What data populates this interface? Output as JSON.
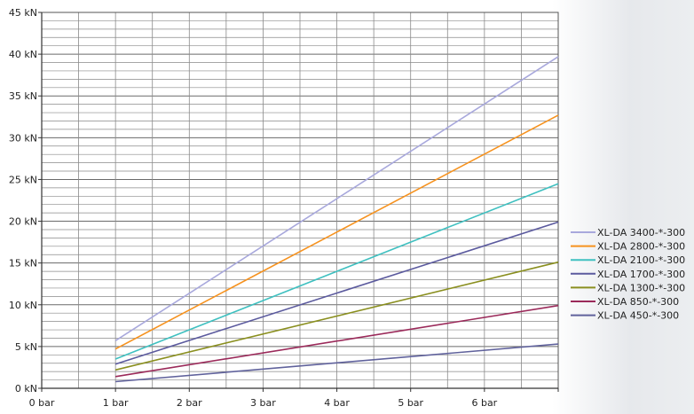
{
  "chart_data": {
    "type": "line",
    "title": "",
    "xlabel": "",
    "ylabel": "",
    "x_ticks": [
      "0 bar",
      "1 bar",
      "2 bar",
      "3 bar",
      "4 bar",
      "5 bar",
      "6 bar"
    ],
    "y_ticks": [
      "0 kN",
      "5 kN",
      "10 kN",
      "15 kN",
      "20 kN",
      "25 kN",
      "30 kN",
      "35 kN",
      "40 kN",
      "45 kN"
    ],
    "xlim": [
      0,
      7
    ],
    "ylim": [
      0,
      45
    ],
    "grid": true,
    "grid_minor_y": 1,
    "legend_position": "right",
    "series": [
      {
        "name": "XL-DA 3400-*-300",
        "color": "#a8a8dc",
        "x": [
          1,
          7
        ],
        "y": [
          5.7,
          39.7
        ]
      },
      {
        "name": "XL-DA 2800-*-300",
        "color": "#f6921e",
        "x": [
          1,
          7
        ],
        "y": [
          4.7,
          32.7
        ]
      },
      {
        "name": "XL-DA 2100-*-300",
        "color": "#3fc0c0",
        "x": [
          1,
          7
        ],
        "y": [
          3.5,
          24.5
        ]
      },
      {
        "name": "XL-DA 1700-*-300",
        "color": "#5b5a9e",
        "x": [
          1,
          7
        ],
        "y": [
          2.9,
          19.9
        ]
      },
      {
        "name": "XL-DA 1300-*-300",
        "color": "#8a8f1f",
        "x": [
          1,
          7
        ],
        "y": [
          2.2,
          15.1
        ]
      },
      {
        "name": "XL-DA  850-*-300",
        "color": "#9b2a5a",
        "x": [
          1,
          7
        ],
        "y": [
          1.4,
          9.9
        ]
      },
      {
        "name": "XL-DA  450-*-300",
        "color": "#60629c",
        "x": [
          1,
          7
        ],
        "y": [
          0.8,
          5.3
        ]
      }
    ]
  }
}
